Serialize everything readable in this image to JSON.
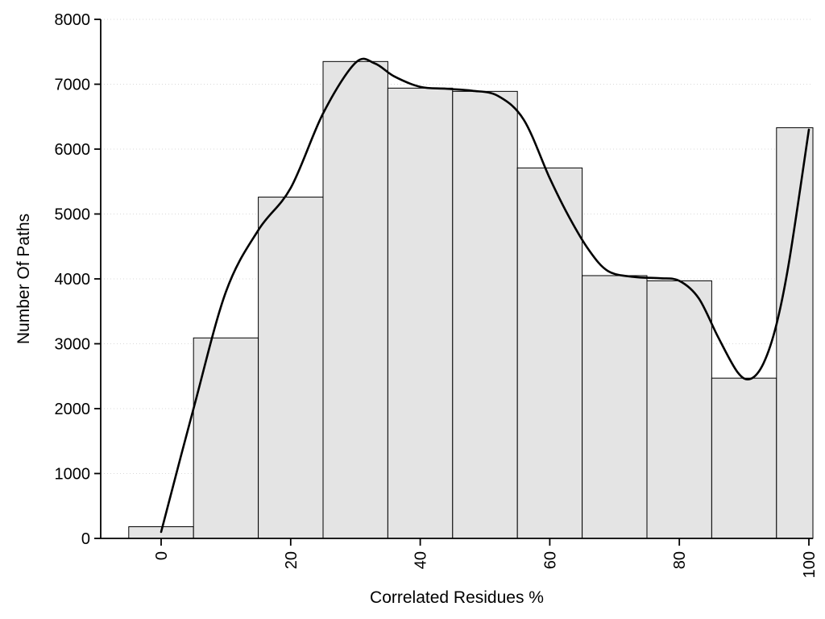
{
  "chart_data": {
    "type": "bar",
    "subtype": "histogram-with-smooth-curve",
    "title": "",
    "xlabel": "Correlated Residues %",
    "ylabel": "Number Of Paths",
    "xlim": [
      0,
      100
    ],
    "ylim": [
      0,
      8000
    ],
    "x_ticks": [
      0,
      20,
      40,
      60,
      80,
      100
    ],
    "y_ticks": [
      0,
      1000,
      2000,
      3000,
      4000,
      5000,
      6000,
      7000,
      8000
    ],
    "bin_width": 10,
    "bar_centers": [
      0,
      10,
      20,
      30,
      40,
      50,
      60,
      70,
      80,
      90,
      100
    ],
    "bar_values": [
      180,
      3090,
      5260,
      7350,
      6940,
      6890,
      5710,
      4050,
      3970,
      2470,
      6330
    ],
    "series": [
      {
        "name": "smooth-curve",
        "points": [
          [
            0,
            100
          ],
          [
            5,
            2000
          ],
          [
            10,
            3800
          ],
          [
            15,
            4750
          ],
          [
            20,
            5400
          ],
          [
            25,
            6550
          ],
          [
            30,
            7330
          ],
          [
            33,
            7320
          ],
          [
            36,
            7120
          ],
          [
            40,
            6960
          ],
          [
            44,
            6930
          ],
          [
            48,
            6900
          ],
          [
            52,
            6820
          ],
          [
            56,
            6450
          ],
          [
            60,
            5550
          ],
          [
            63,
            4950
          ],
          [
            66,
            4450
          ],
          [
            69,
            4120
          ],
          [
            73,
            4030
          ],
          [
            77,
            4010
          ],
          [
            80,
            3970
          ],
          [
            83,
            3700
          ],
          [
            86,
            3100
          ],
          [
            89,
            2560
          ],
          [
            91,
            2460
          ],
          [
            93,
            2700
          ],
          [
            95,
            3300
          ],
          [
            97,
            4300
          ],
          [
            100,
            6300
          ]
        ]
      }
    ],
    "colors": {
      "bar_fill": "#e4e4e4",
      "bar_stroke": "#000000",
      "curve": "#000000",
      "grid": "#d9d9d9",
      "axis": "#000000"
    },
    "grid": "horizontal-dotted",
    "legend": "none",
    "x_tick_label_rotation_deg": -90
  }
}
